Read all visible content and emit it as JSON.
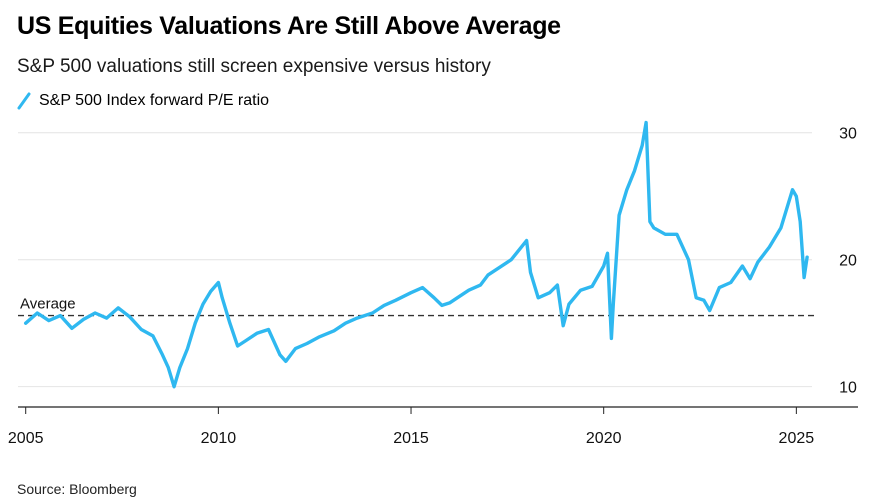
{
  "chart_data": {
    "type": "line",
    "title": "US Equities Valuations Are Still Above Average",
    "subtitle": "S&P 500 valuations still screen expensive versus history",
    "source": "Source: Bloomberg",
    "xlabel": "",
    "ylabel": "",
    "xlim": [
      2004.8,
      2026.6
    ],
    "ylim": [
      8.4,
      31.0
    ],
    "x_ticks": [
      2005,
      2010,
      2015,
      2020,
      2025
    ],
    "x_tick_labels": [
      "2005",
      "2010",
      "2015",
      "2020",
      "2025"
    ],
    "y_ticks": [
      10,
      20,
      30
    ],
    "y_tick_labels": [
      "10",
      "20",
      "30"
    ],
    "grid": "horizontal",
    "legend_position": "top-left",
    "colors": {
      "line": "#2fb8f0",
      "grid": "#e4e4e4",
      "axis": "#222222",
      "average": "#333333"
    },
    "annotations": [
      {
        "label": "Average",
        "y": 15.6
      }
    ],
    "series": [
      {
        "name": "S&P 500 Index forward P/E ratio",
        "x": [
          2005.0,
          2005.3,
          2005.6,
          2005.9,
          2006.2,
          2006.5,
          2006.8,
          2007.1,
          2007.4,
          2007.7,
          2008.0,
          2008.3,
          2008.55,
          2008.7,
          2008.85,
          2009.0,
          2009.2,
          2009.4,
          2009.6,
          2009.8,
          2010.0,
          2010.1,
          2010.3,
          2010.5,
          2010.7,
          2011.0,
          2011.3,
          2011.6,
          2011.75,
          2012.0,
          2012.3,
          2012.6,
          2013.0,
          2013.3,
          2013.6,
          2014.0,
          2014.3,
          2014.6,
          2015.0,
          2015.3,
          2015.6,
          2015.8,
          2016.0,
          2016.2,
          2016.5,
          2016.8,
          2017.0,
          2017.3,
          2017.6,
          2018.0,
          2018.1,
          2018.3,
          2018.6,
          2018.8,
          2018.95,
          2019.1,
          2019.4,
          2019.7,
          2020.0,
          2020.1,
          2020.2,
          2020.25,
          2020.4,
          2020.6,
          2020.8,
          2021.0,
          2021.1,
          2021.2,
          2021.3,
          2021.6,
          2021.9,
          2022.2,
          2022.4,
          2022.6,
          2022.75,
          2023.0,
          2023.3,
          2023.6,
          2023.8,
          2024.0,
          2024.3,
          2024.6,
          2024.9,
          2025.0,
          2025.1,
          2025.2,
          2025.28
        ],
        "values": [
          15.0,
          15.8,
          15.2,
          15.6,
          14.6,
          15.3,
          15.8,
          15.4,
          16.2,
          15.5,
          14.5,
          14.0,
          12.5,
          11.5,
          10.0,
          11.5,
          13.0,
          15.0,
          16.5,
          17.5,
          18.2,
          17.0,
          15.0,
          13.2,
          13.6,
          14.2,
          14.5,
          12.5,
          12.0,
          13.0,
          13.4,
          13.9,
          14.4,
          15.0,
          15.4,
          15.8,
          16.4,
          16.8,
          17.4,
          17.8,
          17.0,
          16.4,
          16.6,
          17.0,
          17.6,
          18.0,
          18.8,
          19.4,
          20.0,
          21.5,
          19.0,
          17.0,
          17.4,
          18.0,
          14.8,
          16.5,
          17.6,
          17.9,
          19.5,
          20.5,
          13.8,
          16.5,
          23.5,
          25.5,
          27.0,
          29.0,
          30.8,
          23.0,
          22.5,
          22.0,
          22.0,
          20.0,
          17.0,
          16.8,
          16.0,
          17.8,
          18.2,
          19.5,
          18.5,
          19.8,
          21.0,
          22.5,
          25.5,
          25.0,
          23.0,
          18.6,
          20.2
        ]
      }
    ]
  }
}
